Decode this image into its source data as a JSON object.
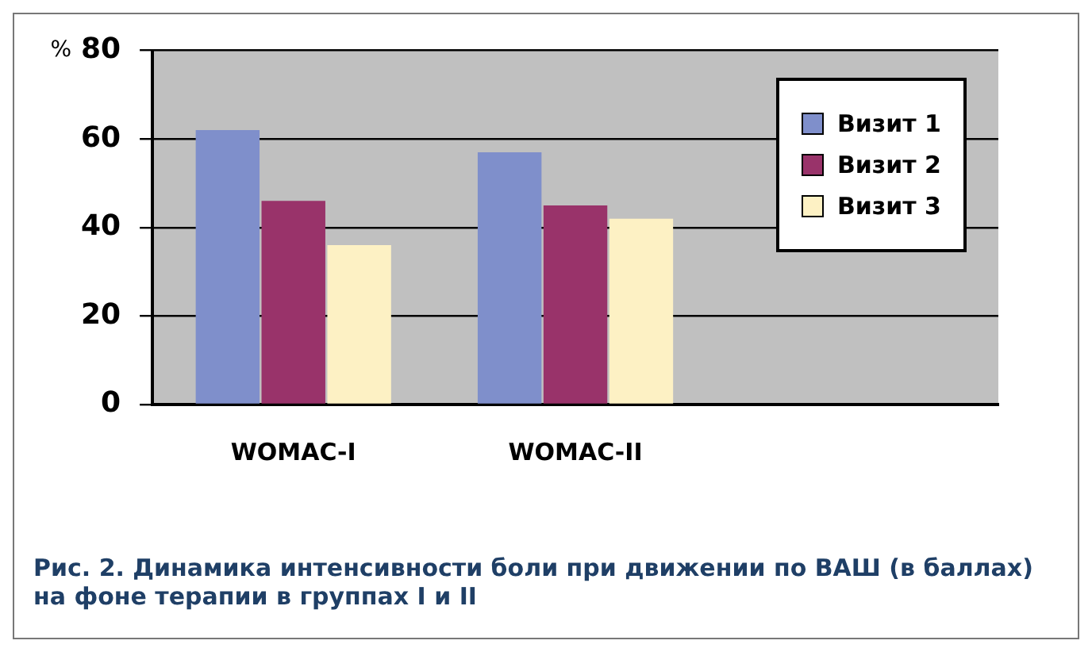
{
  "chart_data": {
    "type": "bar",
    "ylabel": "%",
    "categories": [
      "WOMAC-I",
      "WOMAC-II",
      null
    ],
    "series": [
      {
        "name": "Визит 1",
        "color": "#7f8fcb",
        "values": [
          62,
          57,
          null
        ]
      },
      {
        "name": "Визит 2",
        "color": "#99336a",
        "values": [
          46,
          45,
          null
        ]
      },
      {
        "name": "Визит 3",
        "color": "#fdf1c4",
        "values": [
          36,
          42,
          null
        ]
      }
    ],
    "ylim": [
      0,
      80
    ],
    "yticks": [
      0,
      20,
      40,
      60,
      80
    ],
    "grid": "y",
    "legend": "top right",
    "annotations": [
      "Рис. 2. Динамика интенсивности боли при движении по ВАШ (в баллах) на фоне терапии в группах I и II"
    ]
  }
}
